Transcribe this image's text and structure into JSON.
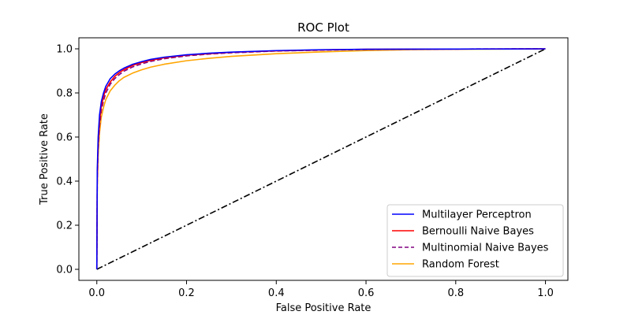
{
  "chart_data": {
    "type": "line",
    "title": "ROC Plot",
    "xlabel": "False Positive Rate",
    "ylabel": "True Positive Rate",
    "xlim": [
      -0.04,
      1.05
    ],
    "ylim": [
      -0.05,
      1.05
    ],
    "xticks": [
      0.0,
      0.2,
      0.4,
      0.6,
      0.8,
      1.0
    ],
    "xtick_labels": [
      "0.0",
      "0.2",
      "0.4",
      "0.6",
      "0.8",
      "1.0"
    ],
    "yticks": [
      0.0,
      0.2,
      0.4,
      0.6,
      0.8,
      1.0
    ],
    "ytick_labels": [
      "0.0",
      "0.2",
      "0.4",
      "0.6",
      "0.8",
      "1.0"
    ],
    "grid": false,
    "legend_position": "lower-right",
    "series": [
      {
        "name": "Multilayer Perceptron",
        "color": "#0000ff",
        "dash": "solid",
        "x": [
          0,
          0.001,
          0.003,
          0.006,
          0.01,
          0.015,
          0.02,
          0.03,
          0.04,
          0.05,
          0.06,
          0.08,
          0.1,
          0.12,
          0.15,
          0.2,
          0.25,
          0.3,
          0.4,
          0.5,
          0.6,
          0.8,
          1.0
        ],
        "y": [
          0,
          0.45,
          0.6,
          0.7,
          0.76,
          0.8,
          0.83,
          0.865,
          0.885,
          0.9,
          0.912,
          0.93,
          0.942,
          0.952,
          0.962,
          0.973,
          0.98,
          0.985,
          0.992,
          0.996,
          0.998,
          0.999,
          1.0
        ]
      },
      {
        "name": "Bernoulli Naive Bayes",
        "color": "#ff0000",
        "dash": "solid",
        "x": [
          0,
          0.001,
          0.003,
          0.006,
          0.01,
          0.015,
          0.02,
          0.03,
          0.04,
          0.05,
          0.06,
          0.08,
          0.1,
          0.12,
          0.15,
          0.2,
          0.25,
          0.3,
          0.4,
          0.5,
          0.6,
          0.8,
          1.0
        ],
        "y": [
          0,
          0.42,
          0.57,
          0.67,
          0.74,
          0.785,
          0.815,
          0.85,
          0.875,
          0.892,
          0.905,
          0.925,
          0.938,
          0.948,
          0.959,
          0.971,
          0.978,
          0.984,
          0.991,
          0.995,
          0.998,
          0.999,
          1.0
        ]
      },
      {
        "name": "Multinomial Naive Bayes",
        "color": "#800080",
        "dash": "dashed",
        "x": [
          0,
          0.001,
          0.003,
          0.006,
          0.01,
          0.015,
          0.02,
          0.03,
          0.04,
          0.05,
          0.06,
          0.08,
          0.1,
          0.12,
          0.15,
          0.2,
          0.25,
          0.3,
          0.4,
          0.5,
          0.6,
          0.8,
          1.0
        ],
        "y": [
          0,
          0.4,
          0.55,
          0.65,
          0.72,
          0.765,
          0.8,
          0.84,
          0.865,
          0.883,
          0.898,
          0.918,
          0.932,
          0.943,
          0.955,
          0.968,
          0.976,
          0.982,
          0.99,
          0.994,
          0.997,
          0.999,
          1.0
        ]
      },
      {
        "name": "Random Forest",
        "color": "#ffa500",
        "dash": "solid",
        "x": [
          0,
          0.001,
          0.003,
          0.006,
          0.01,
          0.015,
          0.02,
          0.03,
          0.04,
          0.05,
          0.06,
          0.08,
          0.1,
          0.12,
          0.15,
          0.2,
          0.25,
          0.3,
          0.4,
          0.5,
          0.6,
          0.7,
          0.8,
          1.0
        ],
        "y": [
          0,
          0.38,
          0.52,
          0.62,
          0.69,
          0.735,
          0.77,
          0.81,
          0.835,
          0.855,
          0.87,
          0.89,
          0.905,
          0.917,
          0.93,
          0.946,
          0.957,
          0.966,
          0.978,
          0.986,
          0.992,
          0.996,
          0.998,
          1.0
        ]
      }
    ],
    "reference_line": {
      "color": "#000000",
      "dash": "dashdot",
      "x": [
        0,
        1
      ],
      "y": [
        0,
        1
      ]
    }
  }
}
